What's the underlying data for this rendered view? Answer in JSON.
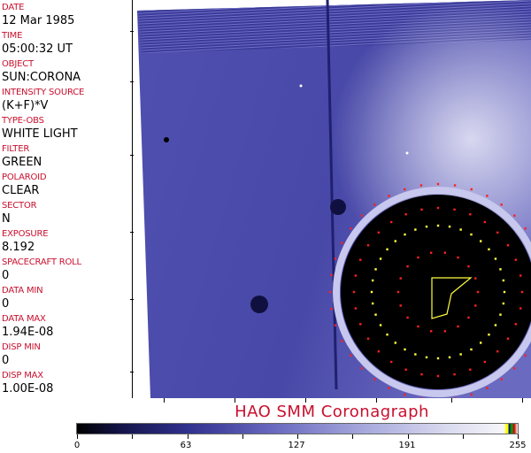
{
  "metadata": [
    {
      "label": "DATE",
      "value": "12 Mar 1985"
    },
    {
      "label": "TIME",
      "value": "05:00:32 UT"
    },
    {
      "label": "OBJECT",
      "value": "SUN:CORONA"
    },
    {
      "label": "INTENSITY SOURCE",
      "value": "(K+F)*V"
    },
    {
      "label": "TYPE-OBS",
      "value": "WHITE LIGHT"
    },
    {
      "label": "FILTER",
      "value": "GREEN"
    },
    {
      "label": "POLAROID",
      "value": "CLEAR"
    },
    {
      "label": "SECTOR",
      "value": "N"
    },
    {
      "label": "EXPOSURE",
      "value": "8.192"
    },
    {
      "label": "SPACECRAFT ROLL",
      "value": "0"
    },
    {
      "label": "DATA MIN",
      "value": "0"
    },
    {
      "label": "DATA MAX",
      "value": "1.94E-08"
    },
    {
      "label": "DISP MIN",
      "value": "0"
    },
    {
      "label": "DISP MAX",
      "value": "1.00E-08"
    }
  ],
  "title": "HAO  SMM Coronagraph",
  "colorbar": {
    "min": 0,
    "max": 255,
    "tick_labels": [
      "0",
      "63",
      "127",
      "191",
      "255"
    ],
    "colors": {
      "low": "#000000",
      "mid": "#6a6ac0",
      "high": "#f6f6fa"
    }
  },
  "colors": {
    "label": "#c8102e",
    "image_background": "#4a4aa8",
    "overlay_red": "#ff2020",
    "overlay_yellow": "#ffff40"
  }
}
